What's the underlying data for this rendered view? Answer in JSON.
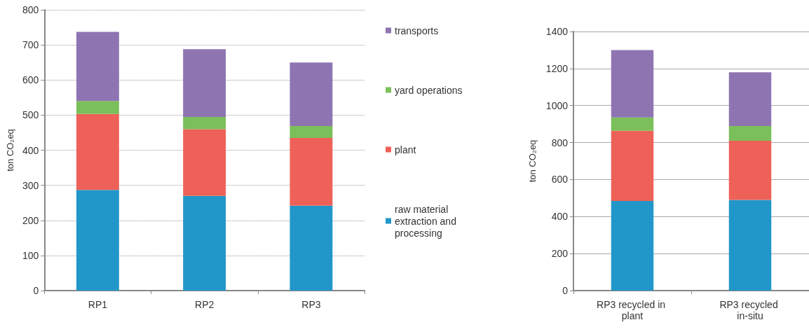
{
  "chart_data": [
    {
      "type": "bar",
      "stacked": true,
      "ylabel": "ton CO₂eq",
      "categories": [
        "RP1",
        "RP2",
        "RP3"
      ],
      "ylim": [
        0,
        800
      ],
      "yticks": [
        0,
        100,
        200,
        300,
        400,
        500,
        600,
        700,
        800
      ],
      "grid": "y",
      "legend": "right",
      "series": [
        {
          "name": "raw material extraction and processing",
          "color": "#2196c9",
          "values": [
            287,
            270,
            242
          ]
        },
        {
          "name": "plant",
          "color": "#ee6158",
          "values": [
            216,
            190,
            193
          ]
        },
        {
          "name": "yard operations",
          "color": "#7bbf5a",
          "values": [
            37,
            35,
            34
          ]
        },
        {
          "name": "transports",
          "color": "#8e75b2",
          "values": [
            197,
            193,
            181
          ]
        }
      ]
    },
    {
      "type": "bar",
      "stacked": true,
      "ylabel": "ton CO₂eq",
      "categories": [
        "RP3 recycled in plant",
        "RP3 recycled in-situ"
      ],
      "ylim": [
        0,
        1400
      ],
      "yticks": [
        0,
        200,
        400,
        600,
        800,
        1000,
        1200,
        1400
      ],
      "grid": "y",
      "series": [
        {
          "color": "#2196c9",
          "values": [
            484,
            490
          ]
        },
        {
          "color": "#ee6158",
          "values": [
            380,
            320
          ]
        },
        {
          "color": "#7bbf5a",
          "values": [
            72,
            79
          ]
        },
        {
          "color": "#8e75b2",
          "values": [
            364,
            291
          ]
        }
      ]
    }
  ]
}
